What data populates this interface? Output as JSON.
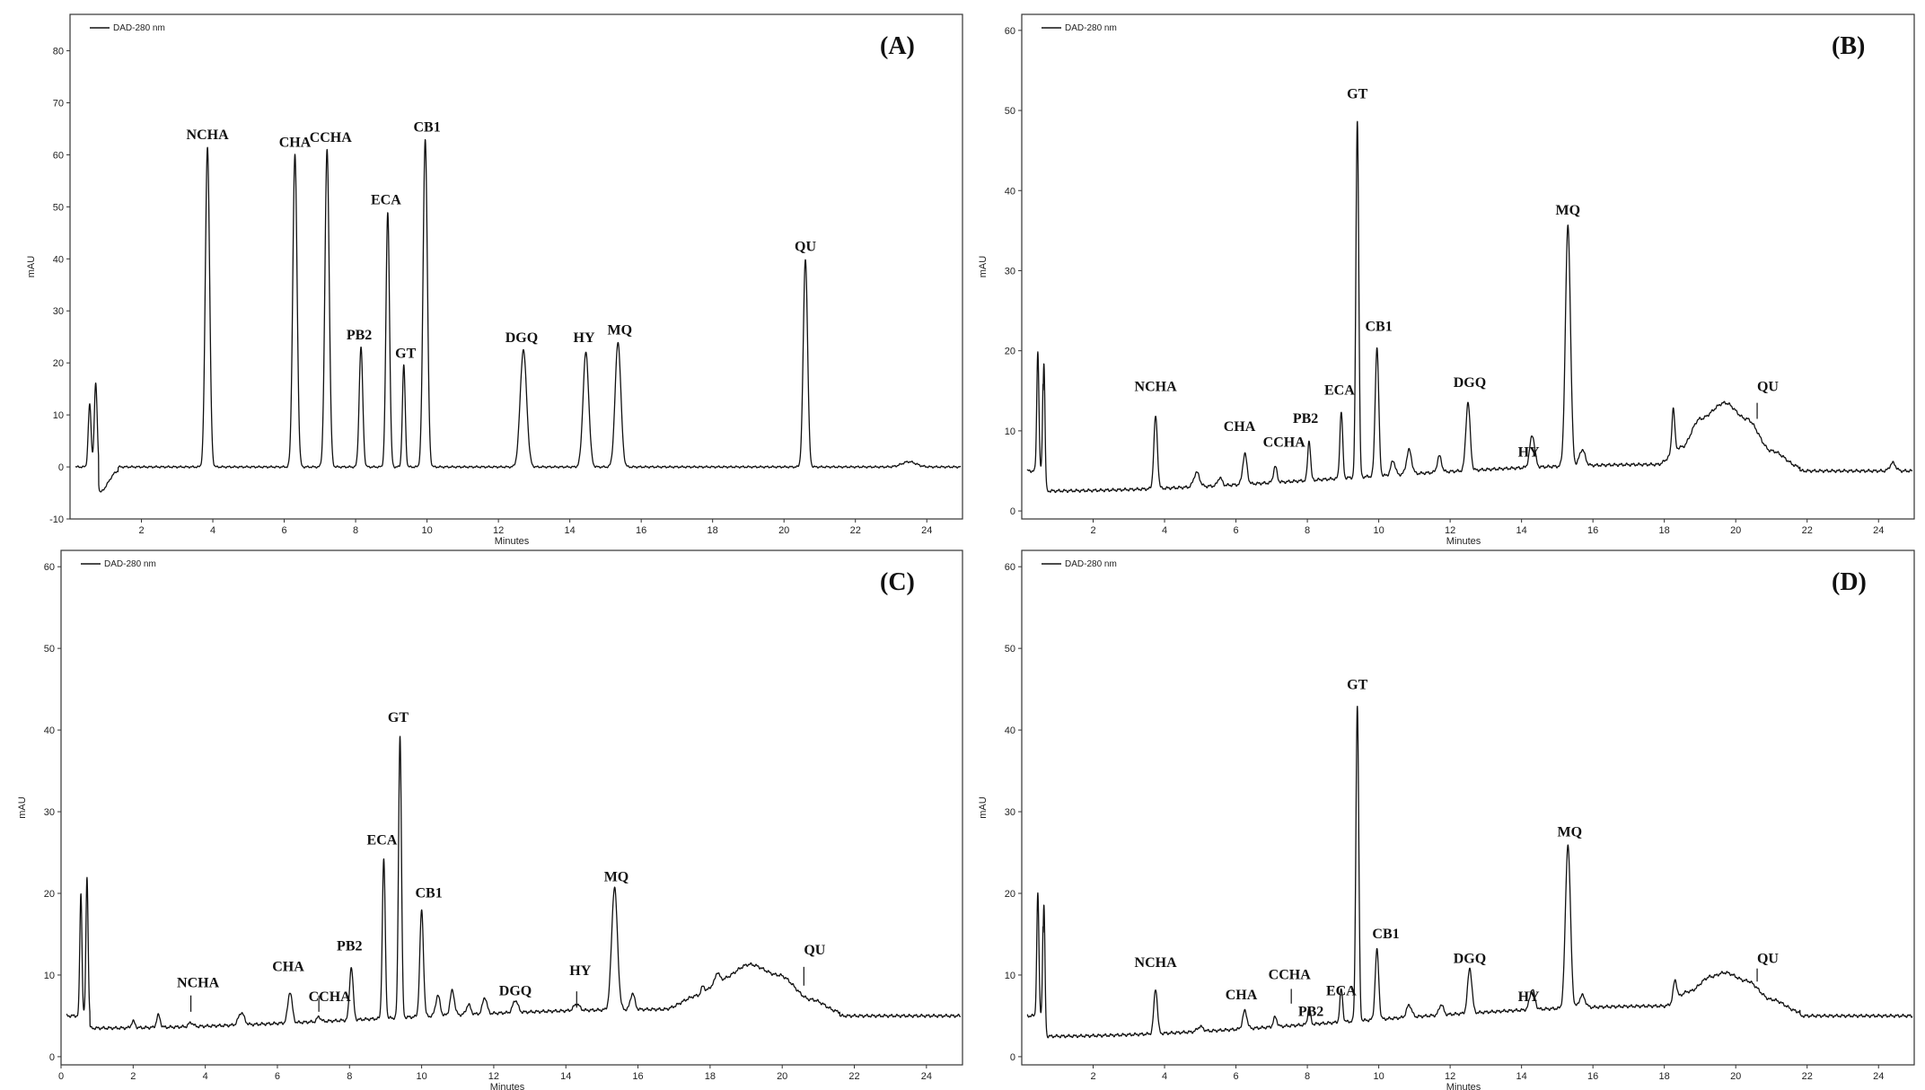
{
  "chart_data": [
    {
      "id": "A",
      "type": "line",
      "panel_label": "(A)",
      "legend": "DAD-280 nm",
      "xlabel": "Minutes",
      "ylabel": "mAU",
      "xlim": [
        0,
        25
      ],
      "ylim": [
        -10,
        87
      ],
      "x_ticks": [
        "2",
        "4",
        "6",
        "8",
        "10",
        "12",
        "14",
        "16",
        "18",
        "20",
        "22",
        "24"
      ],
      "y_ticks": [
        "-10",
        "0",
        "10",
        "20",
        "30",
        "40",
        "50",
        "60",
        "70",
        "80"
      ],
      "baseline": 0,
      "curve": [
        {
          "x": 0.8,
          "h": -5
        },
        {
          "x": 1.35,
          "h": -0.8
        }
      ],
      "peaks": [
        {
          "x": 0.55,
          "h": 12,
          "w": 0.04
        },
        {
          "x": 0.72,
          "h": 16,
          "w": 0.04
        },
        {
          "x": 3.85,
          "h": 61.5,
          "w": 0.06
        },
        {
          "x": 6.3,
          "h": 60,
          "w": 0.06
        },
        {
          "x": 7.2,
          "h": 61,
          "w": 0.06
        },
        {
          "x": 8.15,
          "h": 23,
          "w": 0.05
        },
        {
          "x": 8.9,
          "h": 49,
          "w": 0.05
        },
        {
          "x": 9.35,
          "h": 19.5,
          "w": 0.04
        },
        {
          "x": 9.95,
          "h": 63,
          "w": 0.06
        },
        {
          "x": 12.7,
          "h": 22.5,
          "w": 0.09
        },
        {
          "x": 14.45,
          "h": 22,
          "w": 0.08
        },
        {
          "x": 15.35,
          "h": 24,
          "w": 0.08
        },
        {
          "x": 20.6,
          "h": 40,
          "w": 0.06
        },
        {
          "x": 23.5,
          "h": 1,
          "w": 0.2
        }
      ],
      "labels": [
        {
          "text": "NCHA",
          "x": 3.85,
          "y": 63
        },
        {
          "text": "CHA",
          "x": 6.3,
          "y": 61.5
        },
        {
          "text": "CCHA",
          "x": 7.3,
          "y": 62.5
        },
        {
          "text": "PB2",
          "x": 8.1,
          "y": 24.5
        },
        {
          "text": "ECA",
          "x": 8.85,
          "y": 50.5
        },
        {
          "text": "GT",
          "x": 9.4,
          "y": 21
        },
        {
          "text": "CB1",
          "x": 10.0,
          "y": 64.5
        },
        {
          "text": "DGQ",
          "x": 12.65,
          "y": 24
        },
        {
          "text": "HY",
          "x": 14.4,
          "y": 24
        },
        {
          "text": "MQ",
          "x": 15.4,
          "y": 25.5
        },
        {
          "text": "QU",
          "x": 20.6,
          "y": 41.5
        }
      ],
      "ticks_marks": []
    },
    {
      "id": "B",
      "type": "line",
      "panel_label": "(B)",
      "legend": "DAD-280 nm",
      "xlabel": "Minutes",
      "ylabel": "mAU",
      "xlim": [
        0,
        25
      ],
      "ylim": [
        -1,
        62
      ],
      "x_ticks": [
        "2",
        "4",
        "6",
        "8",
        "10",
        "12",
        "14",
        "16",
        "18",
        "20",
        "22",
        "24"
      ],
      "y_ticks": [
        "0",
        "10",
        "20",
        "30",
        "40",
        "50",
        "60"
      ],
      "baseline": 5,
      "curve": [
        {
          "x": 0.6,
          "h": -2.5
        },
        {
          "x": 17.8,
          "h": 0.8
        },
        {
          "x": 18.5,
          "h": 3
        },
        {
          "x": 19.0,
          "h": 6.5
        },
        {
          "x": 19.7,
          "h": 8.5
        },
        {
          "x": 20.3,
          "h": 6.5
        },
        {
          "x": 21.0,
          "h": 2.5
        },
        {
          "x": 21.8,
          "h": 0.5
        }
      ],
      "peaks": [
        {
          "x": 0.45,
          "h": 15,
          "w": 0.03
        },
        {
          "x": 0.62,
          "h": 16,
          "w": 0.03
        },
        {
          "x": 3.75,
          "h": 9,
          "w": 0.05
        },
        {
          "x": 4.9,
          "h": 1.8,
          "w": 0.08
        },
        {
          "x": 5.55,
          "h": 1,
          "w": 0.06
        },
        {
          "x": 6.25,
          "h": 3.8,
          "w": 0.06
        },
        {
          "x": 7.1,
          "h": 2,
          "w": 0.05
        },
        {
          "x": 8.05,
          "h": 5,
          "w": 0.04
        },
        {
          "x": 8.95,
          "h": 8.3,
          "w": 0.04
        },
        {
          "x": 9.4,
          "h": 44.5,
          "w": 0.04
        },
        {
          "x": 9.95,
          "h": 16,
          "w": 0.05
        },
        {
          "x": 10.4,
          "h": 1.8,
          "w": 0.06
        },
        {
          "x": 10.85,
          "h": 3,
          "w": 0.07
        },
        {
          "x": 11.7,
          "h": 2,
          "w": 0.06
        },
        {
          "x": 12.5,
          "h": 8.5,
          "w": 0.06
        },
        {
          "x": 14.3,
          "h": 4,
          "w": 0.07
        },
        {
          "x": 15.3,
          "h": 30,
          "w": 0.07
        },
        {
          "x": 15.7,
          "h": 2,
          "w": 0.08
        },
        {
          "x": 18.25,
          "h": 5.5,
          "w": 0.04
        },
        {
          "x": 24.4,
          "h": 1,
          "w": 0.08
        }
      ],
      "labels": [
        {
          "text": "NCHA",
          "x": 3.75,
          "y": 15
        },
        {
          "text": "CHA",
          "x": 6.1,
          "y": 10
        },
        {
          "text": "CCHA",
          "x": 7.35,
          "y": 8
        },
        {
          "text": "PB2",
          "x": 7.95,
          "y": 11
        },
        {
          "text": "ECA",
          "x": 8.9,
          "y": 14.5
        },
        {
          "text": "GT",
          "x": 9.4,
          "y": 51.5
        },
        {
          "text": "CB1",
          "x": 10.0,
          "y": 22.5
        },
        {
          "text": "DGQ",
          "x": 12.55,
          "y": 15.5
        },
        {
          "text": "HY",
          "x": 14.2,
          "y": 6.8
        },
        {
          "text": "MQ",
          "x": 15.3,
          "y": 37
        },
        {
          "text": "QU",
          "x": 20.9,
          "y": 15
        }
      ],
      "ticks_marks": [
        {
          "x": 20.6,
          "y0": 11.5,
          "y1": 13.5
        }
      ]
    },
    {
      "id": "C",
      "type": "line",
      "panel_label": "(C)",
      "legend": "DAD-280 nm",
      "xlabel": "Minutes",
      "ylabel": "mAU",
      "xlim": [
        0,
        25
      ],
      "ylim": [
        -1,
        62
      ],
      "x_ticks": [
        "0",
        "2",
        "4",
        "6",
        "8",
        "10",
        "12",
        "14",
        "16",
        "18",
        "20",
        "22",
        "24"
      ],
      "y_ticks": [
        "0",
        "10",
        "20",
        "30",
        "40",
        "50",
        "60"
      ],
      "baseline": 5,
      "curve": [
        {
          "x": 0.8,
          "h": -1.5
        },
        {
          "x": 16.7,
          "h": 0.8
        },
        {
          "x": 17.7,
          "h": 2.5
        },
        {
          "x": 18.3,
          "h": 4.5
        },
        {
          "x": 19.1,
          "h": 6.3
        },
        {
          "x": 19.9,
          "h": 5
        },
        {
          "x": 20.8,
          "h": 2
        },
        {
          "x": 21.6,
          "h": 0.5
        }
      ],
      "peaks": [
        {
          "x": 0.55,
          "h": 15,
          "w": 0.03
        },
        {
          "x": 0.72,
          "h": 17,
          "w": 0.03
        },
        {
          "x": 2.0,
          "h": 0.8,
          "w": 0.05
        },
        {
          "x": 2.7,
          "h": 1.5,
          "w": 0.05
        },
        {
          "x": 3.6,
          "h": 0.5,
          "w": 0.06
        },
        {
          "x": 5.0,
          "h": 1.5,
          "w": 0.08
        },
        {
          "x": 6.35,
          "h": 3.8,
          "w": 0.06
        },
        {
          "x": 7.15,
          "h": 0.6,
          "w": 0.05
        },
        {
          "x": 8.05,
          "h": 6.5,
          "w": 0.05
        },
        {
          "x": 8.95,
          "h": 19.5,
          "w": 0.04
        },
        {
          "x": 9.4,
          "h": 34.5,
          "w": 0.04
        },
        {
          "x": 10.0,
          "h": 13,
          "w": 0.05
        },
        {
          "x": 10.45,
          "h": 2.5,
          "w": 0.06
        },
        {
          "x": 10.85,
          "h": 3,
          "w": 0.06
        },
        {
          "x": 11.3,
          "h": 1.2,
          "w": 0.06
        },
        {
          "x": 11.75,
          "h": 2,
          "w": 0.06
        },
        {
          "x": 12.6,
          "h": 1.5,
          "w": 0.07
        },
        {
          "x": 14.3,
          "h": 0.8,
          "w": 0.08
        },
        {
          "x": 15.35,
          "h": 15,
          "w": 0.08
        },
        {
          "x": 15.85,
          "h": 2,
          "w": 0.06
        },
        {
          "x": 17.8,
          "h": 1,
          "w": 0.05
        },
        {
          "x": 18.2,
          "h": 1,
          "w": 0.05
        }
      ],
      "labels": [
        {
          "text": "NCHA",
          "x": 3.8,
          "y": 8.5
        },
        {
          "text": "CHA",
          "x": 6.3,
          "y": 10.5
        },
        {
          "text": "CCHA",
          "x": 7.45,
          "y": 6.8
        },
        {
          "text": "PB2",
          "x": 8.0,
          "y": 13
        },
        {
          "text": "ECA",
          "x": 8.9,
          "y": 26
        },
        {
          "text": "GT",
          "x": 9.35,
          "y": 41
        },
        {
          "text": "CB1",
          "x": 10.2,
          "y": 19.5
        },
        {
          "text": "DGQ",
          "x": 12.6,
          "y": 7.5
        },
        {
          "text": "HY",
          "x": 14.4,
          "y": 10
        },
        {
          "text": "MQ",
          "x": 15.4,
          "y": 21.5
        },
        {
          "text": "QU",
          "x": 20.9,
          "y": 12.5
        }
      ],
      "ticks_marks": [
        {
          "x": 3.6,
          "y0": 5.5,
          "y1": 7.5
        },
        {
          "x": 7.15,
          "y0": 5.5,
          "y1": 7.5
        },
        {
          "x": 14.3,
          "y0": 6,
          "y1": 8
        },
        {
          "x": 20.6,
          "y0": 8.7,
          "y1": 11
        }
      ]
    },
    {
      "id": "D",
      "type": "line",
      "panel_label": "(D)",
      "legend": "DAD-280 nm",
      "xlabel": "Minutes",
      "ylabel": "mAU",
      "xlim": [
        0,
        25
      ],
      "ylim": [
        -1,
        62
      ],
      "x_ticks": [
        "2",
        "4",
        "6",
        "8",
        "10",
        "12",
        "14",
        "16",
        "18",
        "20",
        "22",
        "24"
      ],
      "y_ticks": [
        "0",
        "10",
        "20",
        "30",
        "40",
        "50",
        "60"
      ],
      "baseline": 5,
      "curve": [
        {
          "x": 0.6,
          "h": -2.5
        },
        {
          "x": 18.0,
          "h": 1.2
        },
        {
          "x": 18.7,
          "h": 3
        },
        {
          "x": 19.3,
          "h": 4.8
        },
        {
          "x": 19.7,
          "h": 5.3
        },
        {
          "x": 20.3,
          "h": 4.3
        },
        {
          "x": 21.0,
          "h": 2
        },
        {
          "x": 21.8,
          "h": 0.5
        }
      ],
      "peaks": [
        {
          "x": 0.45,
          "h": 15,
          "w": 0.03
        },
        {
          "x": 0.62,
          "h": 16,
          "w": 0.03
        },
        {
          "x": 3.75,
          "h": 5.5,
          "w": 0.05
        },
        {
          "x": 5.0,
          "h": 0.6,
          "w": 0.08
        },
        {
          "x": 6.25,
          "h": 2.2,
          "w": 0.06
        },
        {
          "x": 7.1,
          "h": 1.2,
          "w": 0.05
        },
        {
          "x": 8.05,
          "h": 2,
          "w": 0.04
        },
        {
          "x": 8.95,
          "h": 4,
          "w": 0.04
        },
        {
          "x": 9.4,
          "h": 38.5,
          "w": 0.04
        },
        {
          "x": 9.95,
          "h": 8.5,
          "w": 0.05
        },
        {
          "x": 10.85,
          "h": 1.5,
          "w": 0.07
        },
        {
          "x": 11.75,
          "h": 1.3,
          "w": 0.06
        },
        {
          "x": 12.55,
          "h": 5.5,
          "w": 0.06
        },
        {
          "x": 14.3,
          "h": 2.5,
          "w": 0.07
        },
        {
          "x": 15.3,
          "h": 20,
          "w": 0.07
        },
        {
          "x": 15.7,
          "h": 1.5,
          "w": 0.08
        },
        {
          "x": 18.3,
          "h": 2.5,
          "w": 0.05
        }
      ],
      "labels": [
        {
          "text": "NCHA",
          "x": 3.75,
          "y": 11
        },
        {
          "text": "CHA",
          "x": 6.15,
          "y": 7
        },
        {
          "text": "CCHA",
          "x": 7.5,
          "y": 9.5
        },
        {
          "text": "PB2",
          "x": 8.1,
          "y": 5
        },
        {
          "text": "ECA",
          "x": 8.95,
          "y": 7.5
        },
        {
          "text": "GT",
          "x": 9.4,
          "y": 45
        },
        {
          "text": "CB1",
          "x": 10.2,
          "y": 14.5
        },
        {
          "text": "DGQ",
          "x": 12.55,
          "y": 11.5
        },
        {
          "text": "HY",
          "x": 14.2,
          "y": 6.8
        },
        {
          "text": "MQ",
          "x": 15.35,
          "y": 27
        },
        {
          "text": "QU",
          "x": 20.9,
          "y": 11.5
        }
      ],
      "ticks_marks": [
        {
          "x": 7.55,
          "y0": 6.5,
          "y1": 8.3
        },
        {
          "x": 20.6,
          "y0": 9.2,
          "y1": 10.8
        }
      ]
    }
  ]
}
